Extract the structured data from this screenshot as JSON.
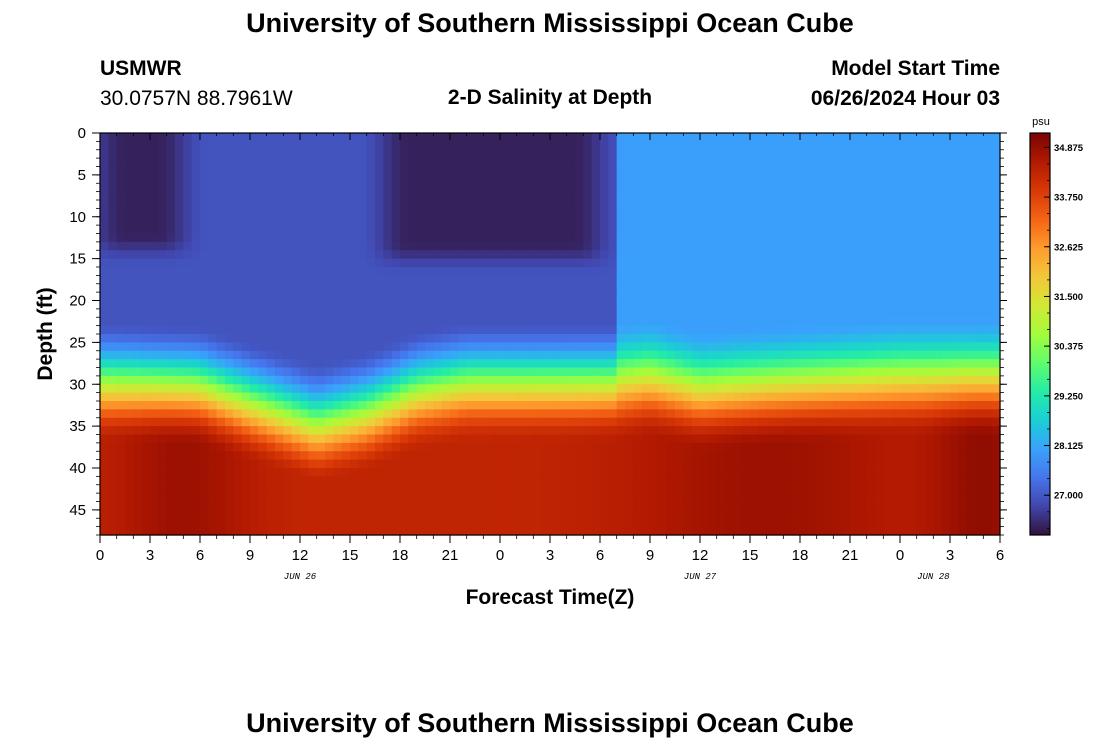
{
  "page": {
    "title_top": "University of Southern Mississippi Ocean Cube",
    "title_bottom": "University of Southern Mississippi Ocean Cube",
    "station": "USMWR",
    "coords": "30.0757N  88.7961W",
    "subtitle": "2-D Salinity at Depth",
    "model_label": "Model Start Time",
    "model_time": "06/26/2024 Hour 03"
  },
  "colors": {
    "colormap": [
      "#30123b",
      "#4145ab",
      "#4675ed",
      "#39a2fc",
      "#1bcfd4",
      "#24eca6",
      "#61fc6c",
      "#a4fc3b",
      "#d1e834",
      "#f3c63a",
      "#fe9b2d",
      "#f36315",
      "#d93806",
      "#b11901",
      "#7a0402"
    ]
  },
  "chart_data": {
    "type": "heatmap",
    "title": "2-D Salinity at Depth",
    "xlabel": "Forecast Time(Z)",
    "ylabel": "Depth (ft)",
    "x_hours_range": [
      0,
      54
    ],
    "x_tick_labels": [
      "0",
      "3",
      "6",
      "9",
      "12",
      "15",
      "18",
      "21",
      "0",
      "3",
      "6",
      "9",
      "12",
      "15",
      "18",
      "21",
      "0",
      "3",
      "6"
    ],
    "date_labels": [
      {
        "label": "JUN 26",
        "hour": 12
      },
      {
        "label": "JUN 27",
        "hour": 36
      },
      {
        "label": "JUN 28",
        "hour": 50
      }
    ],
    "ylim": [
      0,
      48
    ],
    "y_tick_labels": [
      "0",
      "5",
      "10",
      "15",
      "20",
      "25",
      "30",
      "35",
      "40",
      "45"
    ],
    "colorbar": {
      "unit": "psu",
      "range": [
        26.1,
        35.2
      ],
      "tick_labels": [
        "34.875",
        "33.750",
        "32.625",
        "31.500",
        "30.375",
        "29.250",
        "28.125",
        "27.000"
      ]
    },
    "surface_fresh_zones": [
      {
        "start_hour": 0,
        "end_hour": 5,
        "bottom_depth_ft": 14,
        "salinity_psu": 26.3
      },
      {
        "start_hour": 17,
        "end_hour": 30,
        "bottom_depth_ft": 15,
        "salinity_psu": 26.3
      }
    ],
    "halocline_depth_ft": [
      {
        "hour": 0,
        "depth": 27
      },
      {
        "hour": 6,
        "depth": 27.5
      },
      {
        "hour": 10,
        "depth": 30
      },
      {
        "hour": 13,
        "depth": 32
      },
      {
        "hour": 16,
        "depth": 30.5
      },
      {
        "hour": 19,
        "depth": 28
      },
      {
        "hour": 22,
        "depth": 27
      },
      {
        "hour": 27,
        "depth": 27
      },
      {
        "hour": 31,
        "depth": 27
      },
      {
        "hour": 33,
        "depth": 26.5
      },
      {
        "hour": 36,
        "depth": 28
      },
      {
        "hour": 40,
        "depth": 27.5
      },
      {
        "hour": 44,
        "depth": 27
      },
      {
        "hour": 48,
        "depth": 26.5
      },
      {
        "hour": 54,
        "depth": 26.5
      }
    ]
  }
}
